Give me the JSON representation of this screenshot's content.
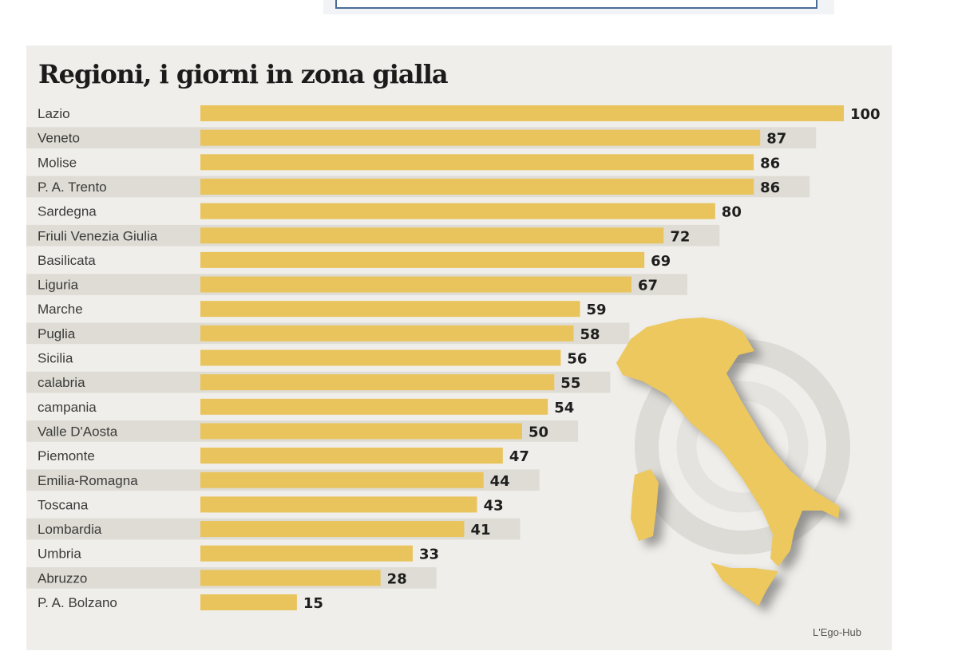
{
  "chart_data": {
    "type": "bar",
    "orientation": "horizontal",
    "title": "Regioni, i giorni in zona gialla",
    "categories": [
      "Lazio",
      "Veneto",
      "Molise",
      "P. A. Trento",
      "Sardegna",
      "Friuli Venezia Giulia",
      "Basilicata",
      "Liguria",
      "Marche",
      "Puglia",
      "Sicilia",
      "calabria",
      "campania",
      "Valle D'Aosta",
      "Piemonte",
      "Emilia-Romagna",
      "Toscana",
      "Lombardia",
      "Umbria",
      "Abruzzo",
      "P. A. Bolzano"
    ],
    "values": [
      100,
      87,
      86,
      86,
      80,
      72,
      69,
      67,
      59,
      58,
      56,
      55,
      54,
      50,
      47,
      44,
      43,
      41,
      33,
      28,
      15
    ],
    "xlim": [
      0,
      100
    ],
    "grid": false,
    "data_labels": true,
    "bar_color": "#e9c45c",
    "source": "L'Ego-Hub"
  }
}
